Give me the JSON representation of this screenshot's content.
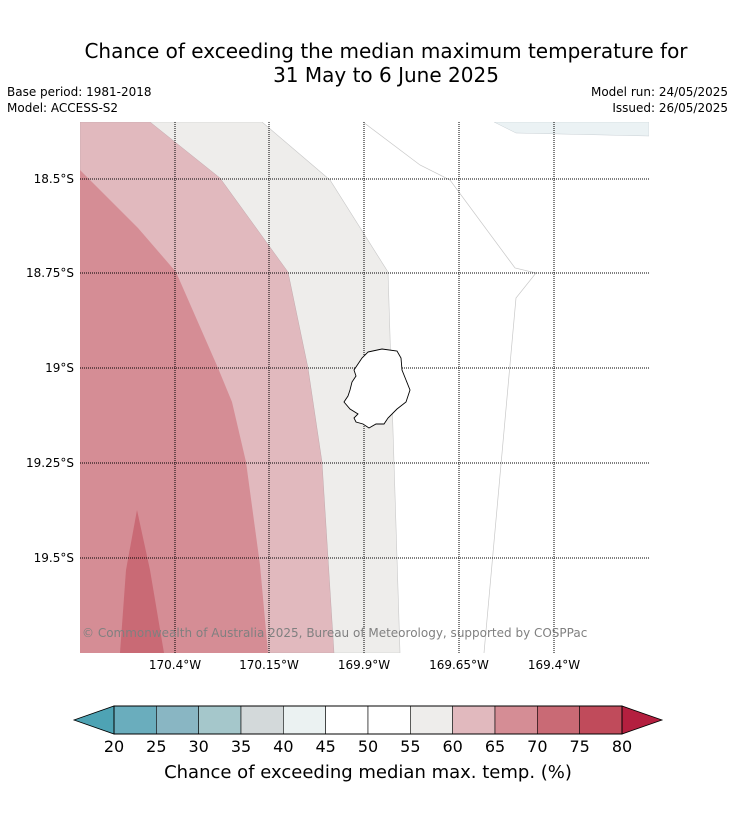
{
  "title": {
    "line1": "Chance of exceeding the median maximum temperature for",
    "line2": "31 May to 6 June 2025"
  },
  "meta": {
    "base_period": "Base period: 1981-2018",
    "model": "Model: ACCESS-S2",
    "model_run": "Model run: 24/05/2025",
    "issued": "Issued: 26/05/2025"
  },
  "map": {
    "lat_labels": [
      "18.5°S",
      "18.75°S",
      "19°S",
      "19.25°S",
      "19.5°S"
    ],
    "lon_labels": [
      "170.4°W",
      "170.15°W",
      "169.9°W",
      "169.65°W",
      "169.4°W"
    ],
    "copyright": "© Commonwealth of Australia 2025, Bureau of Meteorology, supported by COSPPac"
  },
  "colorbar": {
    "ticks": [
      "20",
      "25",
      "30",
      "35",
      "40",
      "45",
      "50",
      "55",
      "60",
      "65",
      "70",
      "75",
      "80"
    ],
    "label": "Chance of exceeding median max. temp. (%)",
    "colors": [
      "#4ea3b4",
      "#6aadbd",
      "#89b6c3",
      "#a5c7cb",
      "#d3d9da",
      "#ebf2f2",
      "#ffffff",
      "#ffffff",
      "#eeedeb",
      "#e1b9be",
      "#d58d95",
      "#c96a75",
      "#c04b5b",
      "#b41f3f"
    ]
  }
}
